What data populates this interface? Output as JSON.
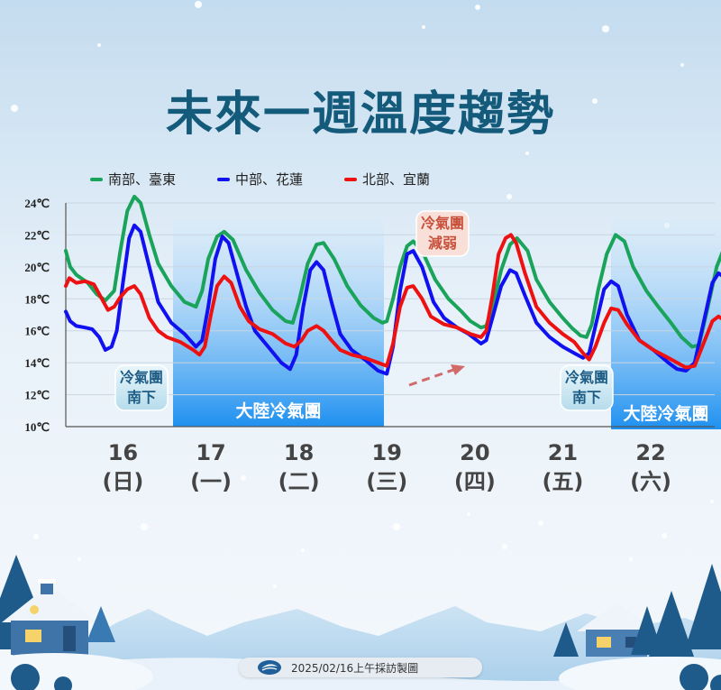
{
  "title": "未來一週溫度趨勢",
  "colors": {
    "south": "#1aa35a",
    "central": "#1010f0",
    "north": "#ee1111",
    "sky_top": "#cfe3f3",
    "band": "#3fa2ee",
    "title": "#145a7a"
  },
  "legend": {
    "south": "南部、臺東",
    "central": "中部、花蓮",
    "north": "北部、宜蘭"
  },
  "annotations": {
    "cold_front_south_a": [
      "冷氣團",
      "南下"
    ],
    "cold_front_south_b": [
      "冷氣團",
      "南下"
    ],
    "cold_weakening": [
      "冷氣團",
      "減弱"
    ],
    "mainland_a": "大陸冷氣團",
    "mainland_b": "大陸冷氣團"
  },
  "chart_data": {
    "type": "line",
    "ylim": [
      10,
      24
    ],
    "yticks": [
      "10℃",
      "12℃",
      "14℃",
      "16℃",
      "18℃",
      "20℃",
      "22℃",
      "24℃"
    ],
    "x_days": [
      {
        "day": "16",
        "weekday": "(日)"
      },
      {
        "day": "17",
        "weekday": "(一)"
      },
      {
        "day": "18",
        "weekday": "(二)"
      },
      {
        "day": "19",
        "weekday": "(三)"
      },
      {
        "day": "20",
        "weekday": "(四)"
      },
      {
        "day": "21",
        "weekday": "(五)"
      },
      {
        "day": "22",
        "weekday": "(六)"
      }
    ],
    "series": [
      {
        "name": "南部、臺東",
        "key": "south",
        "values": [
          [
            0,
            21.0
          ],
          [
            0.05,
            20.0
          ],
          [
            0.12,
            19.5
          ],
          [
            0.25,
            19.0
          ],
          [
            0.35,
            18.3
          ],
          [
            0.45,
            17.9
          ],
          [
            0.55,
            18.5
          ],
          [
            0.62,
            21.0
          ],
          [
            0.7,
            23.5
          ],
          [
            0.78,
            24.4
          ],
          [
            0.85,
            24.0
          ],
          [
            0.95,
            22.0
          ],
          [
            1.05,
            20.2
          ],
          [
            1.2,
            18.8
          ],
          [
            1.35,
            17.8
          ],
          [
            1.48,
            17.5
          ],
          [
            1.55,
            18.5
          ],
          [
            1.62,
            20.5
          ],
          [
            1.72,
            21.9
          ],
          [
            1.8,
            22.2
          ],
          [
            1.9,
            21.7
          ],
          [
            2.05,
            19.8
          ],
          [
            2.2,
            18.4
          ],
          [
            2.35,
            17.3
          ],
          [
            2.5,
            16.6
          ],
          [
            2.58,
            16.5
          ],
          [
            2.65,
            17.8
          ],
          [
            2.75,
            20.2
          ],
          [
            2.85,
            21.4
          ],
          [
            2.93,
            21.5
          ],
          [
            3.05,
            20.5
          ],
          [
            3.2,
            18.8
          ],
          [
            3.35,
            17.6
          ],
          [
            3.5,
            16.8
          ],
          [
            3.6,
            16.5
          ],
          [
            3.65,
            16.6
          ],
          [
            3.72,
            18.0
          ],
          [
            3.8,
            20.0
          ],
          [
            3.88,
            21.3
          ],
          [
            3.95,
            21.6
          ],
          [
            4.05,
            21.0
          ],
          [
            4.2,
            19.2
          ],
          [
            4.35,
            18.0
          ],
          [
            4.5,
            17.2
          ],
          [
            4.6,
            16.6
          ],
          [
            4.72,
            16.2
          ],
          [
            4.78,
            16.3
          ],
          [
            4.85,
            17.5
          ],
          [
            4.95,
            19.8
          ],
          [
            5.05,
            21.4
          ],
          [
            5.13,
            21.8
          ],
          [
            5.25,
            21.0
          ],
          [
            5.35,
            19.2
          ],
          [
            5.5,
            17.8
          ],
          [
            5.65,
            16.8
          ],
          [
            5.75,
            16.2
          ],
          [
            5.85,
            15.7
          ],
          [
            5.92,
            15.6
          ],
          [
            5.98,
            16.4
          ],
          [
            6.05,
            18.5
          ],
          [
            6.15,
            20.8
          ],
          [
            6.25,
            22.0
          ],
          [
            6.35,
            21.6
          ],
          [
            6.45,
            20.0
          ],
          [
            6.6,
            18.5
          ],
          [
            6.75,
            17.4
          ],
          [
            6.88,
            16.5
          ],
          [
            7.0,
            15.6
          ],
          [
            7.12,
            15.0
          ],
          [
            7.2,
            15.1
          ],
          [
            7.3,
            17.5
          ],
          [
            7.4,
            20.0
          ],
          [
            7.5,
            21.4
          ],
          [
            7.6,
            21.7
          ],
          [
            7.7,
            21.0
          ],
          [
            7.82,
            19.2
          ],
          [
            7.95,
            17.6
          ],
          [
            8.05,
            16.8
          ],
          [
            8.12,
            16.2
          ]
        ]
      },
      {
        "name": "中部、花蓮",
        "key": "central",
        "values": [
          [
            0,
            17.2
          ],
          [
            0.05,
            16.6
          ],
          [
            0.12,
            16.3
          ],
          [
            0.22,
            16.2
          ],
          [
            0.3,
            16.1
          ],
          [
            0.38,
            15.6
          ],
          [
            0.45,
            14.8
          ],
          [
            0.52,
            15.0
          ],
          [
            0.58,
            16.0
          ],
          [
            0.65,
            19.0
          ],
          [
            0.72,
            21.8
          ],
          [
            0.78,
            22.6
          ],
          [
            0.85,
            22.2
          ],
          [
            0.95,
            20.0
          ],
          [
            1.05,
            17.8
          ],
          [
            1.2,
            16.5
          ],
          [
            1.35,
            15.8
          ],
          [
            1.48,
            15.0
          ],
          [
            1.55,
            15.4
          ],
          [
            1.62,
            17.5
          ],
          [
            1.7,
            20.5
          ],
          [
            1.78,
            21.9
          ],
          [
            1.85,
            21.5
          ],
          [
            1.95,
            19.5
          ],
          [
            2.05,
            17.5
          ],
          [
            2.15,
            16.0
          ],
          [
            2.3,
            15.0
          ],
          [
            2.45,
            14.0
          ],
          [
            2.55,
            13.6
          ],
          [
            2.62,
            14.5
          ],
          [
            2.7,
            17.5
          ],
          [
            2.78,
            19.8
          ],
          [
            2.85,
            20.3
          ],
          [
            2.93,
            19.8
          ],
          [
            3.02,
            17.8
          ],
          [
            3.12,
            15.8
          ],
          [
            3.25,
            14.8
          ],
          [
            3.4,
            14.2
          ],
          [
            3.55,
            13.5
          ],
          [
            3.65,
            13.3
          ],
          [
            3.72,
            15.0
          ],
          [
            3.8,
            18.5
          ],
          [
            3.88,
            20.8
          ],
          [
            3.95,
            21.0
          ],
          [
            4.05,
            20.0
          ],
          [
            4.18,
            17.8
          ],
          [
            4.3,
            16.8
          ],
          [
            4.45,
            16.2
          ],
          [
            4.58,
            15.8
          ],
          [
            4.72,
            15.2
          ],
          [
            4.78,
            15.4
          ],
          [
            4.85,
            16.8
          ],
          [
            4.95,
            18.8
          ],
          [
            5.05,
            19.8
          ],
          [
            5.12,
            19.6
          ],
          [
            5.22,
            18.2
          ],
          [
            5.35,
            16.5
          ],
          [
            5.5,
            15.6
          ],
          [
            5.65,
            15.0
          ],
          [
            5.78,
            14.6
          ],
          [
            5.88,
            14.3
          ],
          [
            5.95,
            14.6
          ],
          [
            6.03,
            16.5
          ],
          [
            6.12,
            18.6
          ],
          [
            6.2,
            19.1
          ],
          [
            6.28,
            18.8
          ],
          [
            6.38,
            17.0
          ],
          [
            6.52,
            15.4
          ],
          [
            6.68,
            14.8
          ],
          [
            6.85,
            14.0
          ],
          [
            6.95,
            13.6
          ],
          [
            7.05,
            13.5
          ],
          [
            7.15,
            14.0
          ],
          [
            7.25,
            16.5
          ],
          [
            7.35,
            19.0
          ],
          [
            7.42,
            19.6
          ],
          [
            7.5,
            19.3
          ],
          [
            7.6,
            17.5
          ],
          [
            7.72,
            15.5
          ],
          [
            7.85,
            14.5
          ],
          [
            7.98,
            14.1
          ],
          [
            8.05,
            13.9
          ]
        ]
      },
      {
        "name": "北部、宜蘭",
        "key": "north",
        "values": [
          [
            0,
            18.8
          ],
          [
            0.04,
            19.3
          ],
          [
            0.12,
            19.0
          ],
          [
            0.22,
            19.1
          ],
          [
            0.32,
            18.9
          ],
          [
            0.4,
            18.1
          ],
          [
            0.48,
            17.3
          ],
          [
            0.55,
            17.5
          ],
          [
            0.62,
            18.1
          ],
          [
            0.7,
            18.6
          ],
          [
            0.78,
            18.8
          ],
          [
            0.85,
            18.3
          ],
          [
            0.95,
            16.8
          ],
          [
            1.05,
            16.0
          ],
          [
            1.15,
            15.6
          ],
          [
            1.3,
            15.3
          ],
          [
            1.45,
            14.8
          ],
          [
            1.52,
            14.5
          ],
          [
            1.58,
            15.0
          ],
          [
            1.65,
            17.0
          ],
          [
            1.72,
            18.8
          ],
          [
            1.8,
            19.4
          ],
          [
            1.88,
            19.0
          ],
          [
            1.98,
            17.5
          ],
          [
            2.08,
            16.6
          ],
          [
            2.2,
            16.1
          ],
          [
            2.35,
            15.8
          ],
          [
            2.5,
            15.2
          ],
          [
            2.6,
            15.0
          ],
          [
            2.68,
            15.4
          ],
          [
            2.75,
            16.0
          ],
          [
            2.85,
            16.3
          ],
          [
            2.93,
            16.0
          ],
          [
            3.02,
            15.4
          ],
          [
            3.12,
            14.8
          ],
          [
            3.25,
            14.5
          ],
          [
            3.4,
            14.3
          ],
          [
            3.55,
            14.0
          ],
          [
            3.65,
            13.8
          ],
          [
            3.72,
            15.2
          ],
          [
            3.8,
            17.5
          ],
          [
            3.88,
            18.7
          ],
          [
            3.95,
            18.8
          ],
          [
            4.05,
            18.0
          ],
          [
            4.15,
            16.9
          ],
          [
            4.3,
            16.4
          ],
          [
            4.45,
            16.2
          ],
          [
            4.6,
            15.8
          ],
          [
            4.72,
            15.6
          ],
          [
            4.78,
            16.0
          ],
          [
            4.85,
            18.2
          ],
          [
            4.92,
            20.8
          ],
          [
            5.0,
            21.8
          ],
          [
            5.06,
            22.0
          ],
          [
            5.12,
            21.5
          ],
          [
            5.22,
            19.6
          ],
          [
            5.35,
            17.5
          ],
          [
            5.5,
            16.5
          ],
          [
            5.65,
            15.8
          ],
          [
            5.78,
            15.3
          ],
          [
            5.88,
            14.6
          ],
          [
            5.95,
            14.2
          ],
          [
            6.02,
            15.0
          ],
          [
            6.12,
            16.5
          ],
          [
            6.2,
            17.4
          ],
          [
            6.28,
            17.3
          ],
          [
            6.38,
            16.4
          ],
          [
            6.52,
            15.4
          ],
          [
            6.68,
            14.8
          ],
          [
            6.85,
            14.3
          ],
          [
            6.95,
            14.0
          ],
          [
            7.05,
            13.7
          ],
          [
            7.15,
            13.8
          ],
          [
            7.25,
            15.2
          ],
          [
            7.35,
            16.6
          ],
          [
            7.42,
            16.9
          ],
          [
            7.5,
            16.6
          ],
          [
            7.6,
            15.5
          ],
          [
            7.72,
            14.4
          ],
          [
            7.85,
            13.9
          ],
          [
            7.98,
            13.6
          ],
          [
            8.05,
            13.5
          ]
        ]
      }
    ]
  },
  "footer": {
    "text": "2025/02/16上午採訪製圖"
  }
}
